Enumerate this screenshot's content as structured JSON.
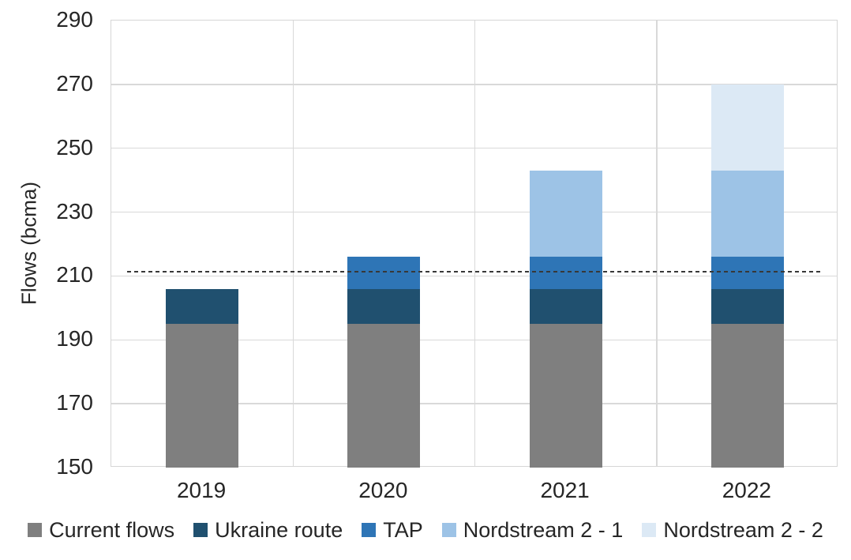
{
  "chart_data": {
    "type": "bar",
    "stacked": true,
    "title": "",
    "ylabel": "Flows (bcma)",
    "xlabel": "",
    "categories": [
      "2019",
      "2020",
      "2021",
      "2022"
    ],
    "series": [
      {
        "name": "Current flows",
        "color": "#7f7f7f",
        "values": [
          195,
          195,
          195,
          195
        ]
      },
      {
        "name": "Ukraine route",
        "color": "#20506f",
        "values": [
          11,
          11,
          11,
          11
        ]
      },
      {
        "name": "TAP",
        "color": "#2e75b6",
        "values": [
          0,
          10,
          10,
          10
        ]
      },
      {
        "name": "Nordstream 2 - 1",
        "color": "#9dc3e6",
        "values": [
          0,
          0,
          27,
          27
        ]
      },
      {
        "name": "Nordstream 2 - 2",
        "color": "#dce9f5",
        "values": [
          0,
          0,
          0,
          27
        ]
      }
    ],
    "stack_totals": [
      206,
      216,
      243,
      270
    ],
    "ylim": [
      150,
      290
    ],
    "yticks": [
      150,
      170,
      190,
      210,
      230,
      250,
      270,
      290
    ],
    "reference_line": {
      "value": 211,
      "style": "dashed",
      "color": "#383838"
    },
    "grid": {
      "horizontal": true,
      "vertical": true,
      "color": "#d9d9d9"
    },
    "legend_position": "bottom",
    "background_color": "#ffffff"
  }
}
